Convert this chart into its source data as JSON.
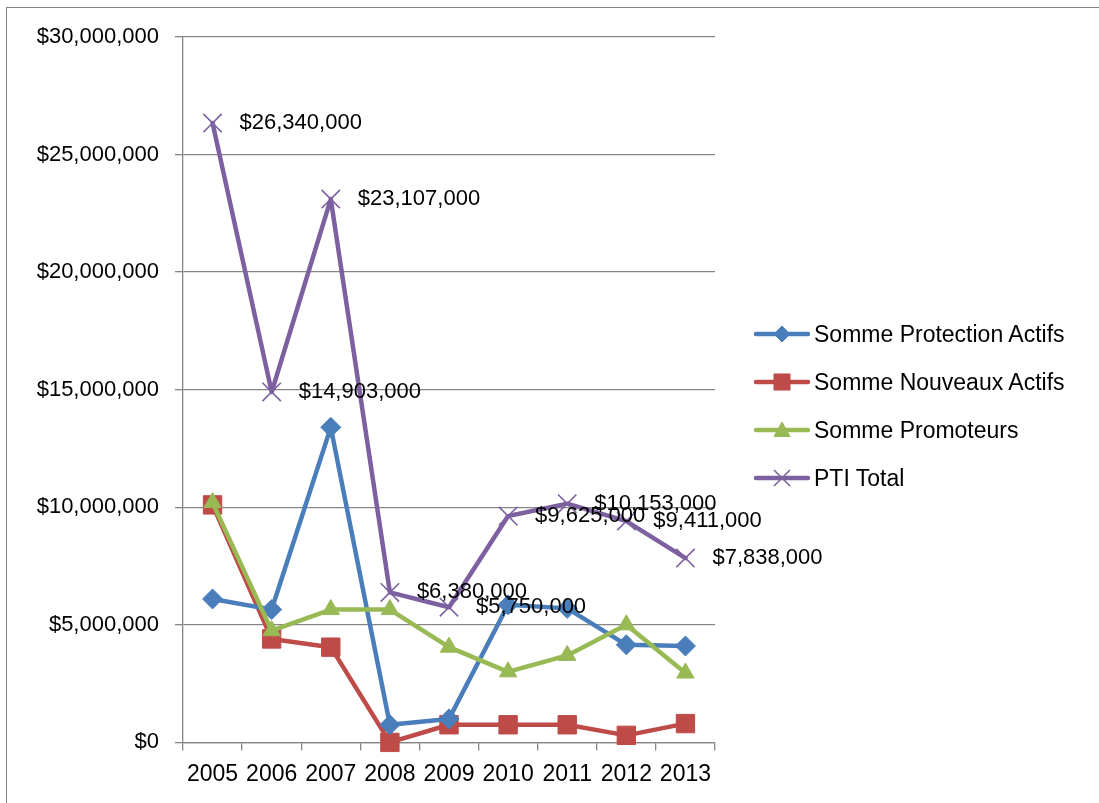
{
  "chart_data": {
    "type": "line",
    "categories": [
      "2005",
      "2006",
      "2007",
      "2008",
      "2009",
      "2010",
      "2011",
      "2012",
      "2013"
    ],
    "series": [
      {
        "name": "Somme Protection Actifs",
        "color": "#4a7ebb",
        "marker": "diamond",
        "values": [
          6100000,
          5650000,
          13400000,
          750000,
          1000000,
          5850000,
          5700000,
          4150000,
          4100000
        ]
      },
      {
        "name": "Somme Nouveaux Actifs",
        "color": "#be4b48",
        "marker": "square",
        "values": [
          10100000,
          4400000,
          4050000,
          0,
          750000,
          750000,
          750000,
          300000,
          800000
        ]
      },
      {
        "name": "Somme Promoteurs",
        "color": "#98b954",
        "marker": "triangle",
        "values": [
          10200000,
          4750000,
          5650000,
          5650000,
          4050000,
          3000000,
          3700000,
          5000000,
          2950000
        ]
      },
      {
        "name": "PTI Total",
        "color": "#7d60a0",
        "marker": "cross",
        "values": [
          26340000,
          14903000,
          23107000,
          6380000,
          5750000,
          9625000,
          10153000,
          9411000,
          7838000
        ],
        "value_labels": [
          "$26,340,000",
          "$14,903,000",
          "$23,107,000",
          "$6,380,000",
          "$5,750,000",
          "$9,625,000",
          "$10,153,000",
          "$9,411,000",
          "$7,838,000"
        ]
      }
    ],
    "ylim": [
      0,
      30000000
    ],
    "yticks": [
      {
        "value": 0,
        "label": "$0"
      },
      {
        "value": 5000000,
        "label": "$5,000,000"
      },
      {
        "value": 10000000,
        "label": "$10,000,000"
      },
      {
        "value": 15000000,
        "label": "$15,000,000"
      },
      {
        "value": 20000000,
        "label": "$20,000,000"
      },
      {
        "value": 25000000,
        "label": "$25,000,000"
      },
      {
        "value": 30000000,
        "label": "$30,000,000"
      }
    ],
    "grid": "y",
    "legend": "right",
    "line_style": "solid"
  }
}
